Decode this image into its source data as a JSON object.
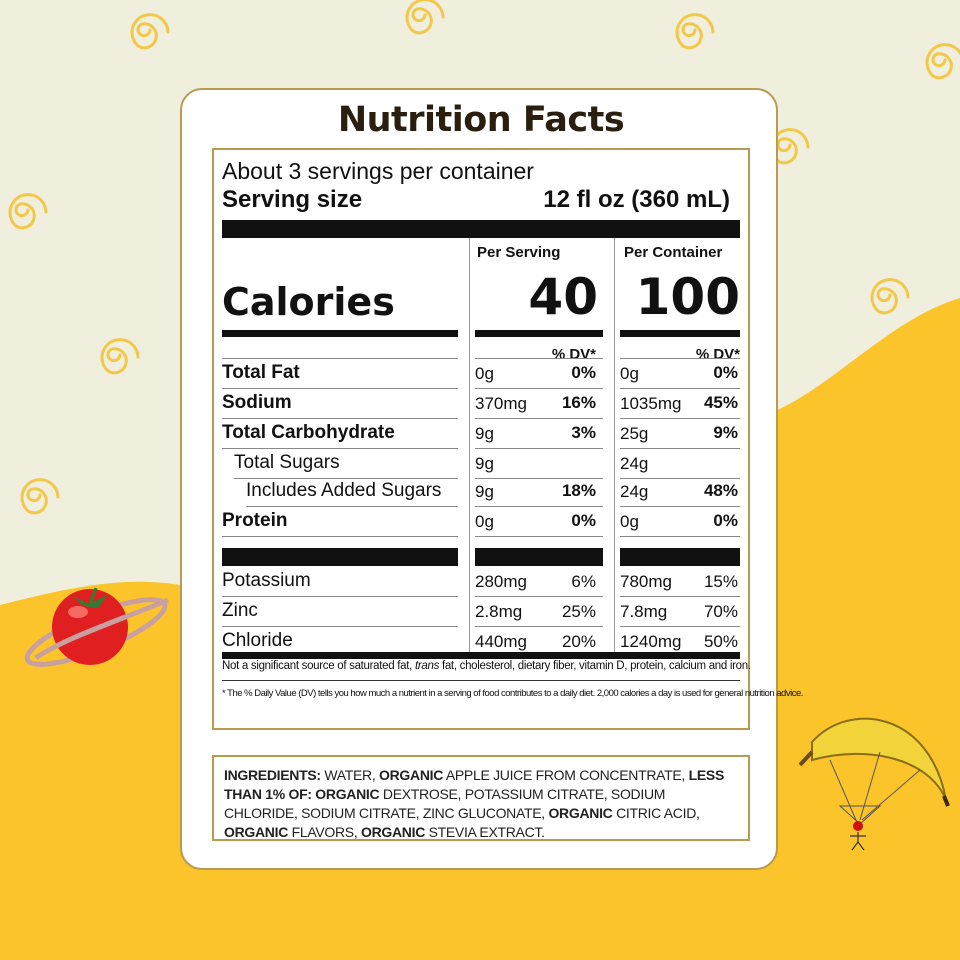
{
  "label": {
    "title": "Nutrition Facts",
    "servings_per_container": "About 3 servings per container",
    "serving_size_label": "Serving size",
    "serving_size_value": "12 fl oz (360 mL)",
    "col_per_serving": "Per Serving",
    "col_per_container": "Per Container",
    "calories_label": "Calories",
    "calories_per_serving": "40",
    "calories_per_container": "100",
    "dv_header": "% DV*",
    "nutrients": [
      {
        "name": "Total Fat",
        "serving_amount": "0g",
        "serving_dv": "0%",
        "container_amount": "0g",
        "container_dv": "0%"
      },
      {
        "name": "Sodium",
        "serving_amount": "370mg",
        "serving_dv": "16%",
        "container_amount": "1035mg",
        "container_dv": "45%"
      },
      {
        "name": "Total Carbohydrate",
        "serving_amount": "9g",
        "serving_dv": "3%",
        "container_amount": "25g",
        "container_dv": "9%"
      },
      {
        "name": "Total Sugars",
        "serving_amount": "9g",
        "serving_dv": "",
        "container_amount": "24g",
        "container_dv": ""
      },
      {
        "name": "Includes Added Sugars",
        "serving_amount": "9g",
        "serving_dv": "18%",
        "container_amount": "24g",
        "container_dv": "48%"
      },
      {
        "name": "Protein",
        "serving_amount": "0g",
        "serving_dv": "0%",
        "container_amount": "0g",
        "container_dv": "0%"
      }
    ],
    "minerals": [
      {
        "name": "Potassium",
        "serving_amount": "280mg",
        "serving_dv": "6%",
        "container_amount": "780mg",
        "container_dv": "15%"
      },
      {
        "name": "Zinc",
        "serving_amount": "2.8mg",
        "serving_dv": "25%",
        "container_amount": "7.8mg",
        "container_dv": "70%"
      },
      {
        "name": "Chloride",
        "serving_amount": "440mg",
        "serving_dv": "20%",
        "container_amount": "1240mg",
        "container_dv": "50%"
      }
    ],
    "footnote_1_a": "Not a significant source of saturated fat,",
    "footnote_1_trans": "trans",
    "footnote_1_b": "fat, cholesterol, dietary fiber, vitamin D, protein, calcium and iron.",
    "footnote_2": "* The % Daily Value (DV) tells you how much a nutrient in a serving of food contributes to a daily diet. 2,000 calories a day is used for general nutrition advice."
  },
  "ingredients": {
    "parts": [
      {
        "text": "INGREDIENTS: ",
        "bold": true
      },
      {
        "text": "WATER, ",
        "bold": false
      },
      {
        "text": "ORGANIC",
        "bold": true
      },
      {
        "text": " APPLE JUICE FROM CONCENTRATE, ",
        "bold": false
      },
      {
        "text": "LESS THAN 1% OF: ORGANIC",
        "bold": true
      },
      {
        "text": " DEXTROSE, POTASSIUM CITRATE, SODIUM CHLORIDE, SODIUM CITRATE, ZINC GLUCONATE, ",
        "bold": false
      },
      {
        "text": "ORGANIC",
        "bold": true
      },
      {
        "text": " CITRIC ACID, ",
        "bold": false
      },
      {
        "text": "ORGANIC",
        "bold": true
      },
      {
        "text": " FLAVORS, ",
        "bold": false
      },
      {
        "text": "ORGANIC",
        "bold": true
      },
      {
        "text": " STEVIA EXTRACT.",
        "bold": false
      }
    ]
  },
  "colors": {
    "background_cream": "#f0eedc",
    "background_yellow": "#fcc42b",
    "card_border_gold": "#b89a50",
    "swirl": "#f2c84a"
  },
  "decorations": [
    "swirl-icon",
    "tomato-planet-icon",
    "banana-parachute-icon"
  ]
}
